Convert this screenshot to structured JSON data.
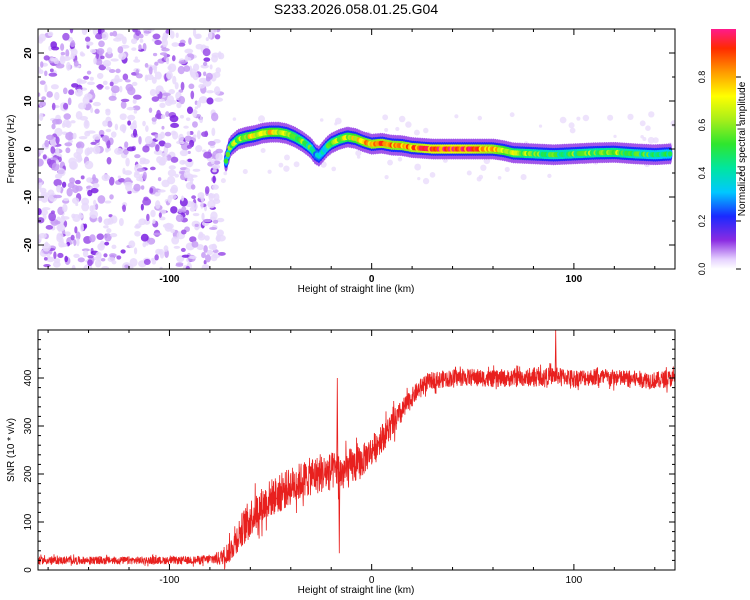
{
  "title": "S233.2026.058.01.25.G04",
  "chart_data": [
    {
      "type": "heatmap",
      "description_of_values": "spectrogram: frequency trace vs height",
      "xlabel": "Height of straight line (km)",
      "ylabel": "Frequency (Hz)",
      "xlim": [
        -165,
        150
      ],
      "ylim": [
        -25,
        25
      ],
      "xticks": [
        -100,
        0,
        100
      ],
      "xtick_labels": [
        "-100",
        "0",
        "100"
      ],
      "yticks": [
        -20,
        -10,
        0,
        10,
        20
      ],
      "ytick_labels": [
        "-20",
        "-10",
        "0",
        "10",
        "20"
      ],
      "noise_region_x": [
        -165,
        -74
      ],
      "trace": {
        "x": [
          -72,
          -70,
          -66,
          -62,
          -58,
          -54,
          -50,
          -46,
          -42,
          -38,
          -34,
          -30,
          -28,
          -26,
          -24,
          -22,
          -20,
          -16,
          -12,
          -8,
          -4,
          0,
          5,
          10,
          15,
          20,
          30,
          40,
          50,
          60,
          65,
          70,
          80,
          90,
          100,
          110,
          120,
          130,
          140,
          148
        ],
        "y": [
          -2.5,
          0.5,
          2.0,
          2.5,
          2.8,
          3.3,
          3.5,
          3.5,
          3.2,
          2.5,
          1.5,
          0.2,
          -1.0,
          -1.5,
          -0.5,
          0.5,
          1.2,
          2.0,
          2.5,
          2.2,
          1.5,
          1.0,
          1.2,
          0.8,
          0.7,
          0.3,
          0.0,
          0.0,
          0.0,
          0.0,
          -0.3,
          -0.8,
          -1.0,
          -1.2,
          -1.0,
          -0.8,
          -0.7,
          -1.0,
          -1.2,
          -1.0
        ],
        "amplitude": [
          0.4,
          0.55,
          0.6,
          0.65,
          0.7,
          0.72,
          0.7,
          0.68,
          0.65,
          0.6,
          0.55,
          0.45,
          0.35,
          0.35,
          0.4,
          0.5,
          0.55,
          0.6,
          0.65,
          0.7,
          0.75,
          0.8,
          0.82,
          0.8,
          0.78,
          0.82,
          0.9,
          0.92,
          0.88,
          0.8,
          0.7,
          0.62,
          0.55,
          0.5,
          0.52,
          0.55,
          0.58,
          0.5,
          0.45,
          0.42
        ]
      },
      "colorbar": {
        "label": "Normalized spectral amplitude",
        "range": [
          0.0,
          1.0
        ],
        "ticks": [
          0.0,
          0.2,
          0.4,
          0.6,
          0.8
        ],
        "tick_labels": [
          "0.0",
          "0.2",
          "0.4",
          "0.6",
          "0.8"
        ]
      }
    },
    {
      "type": "line",
      "xlabel": "Height of straight line (km)",
      "ylabel": "SNR (10 * v/v)",
      "xlim": [
        -165,
        150
      ],
      "ylim": [
        0,
        500
      ],
      "xticks": [
        -100,
        0,
        100
      ],
      "xtick_labels": [
        "-100",
        "0",
        "100"
      ],
      "yticks": [
        0,
        100,
        200,
        300,
        400
      ],
      "ytick_labels": [
        "0",
        "100",
        "200",
        "300",
        "400"
      ],
      "series": [
        {
          "name": "SNR",
          "color": "#e8201e",
          "x": [
            -165,
            -150,
            -130,
            -110,
            -90,
            -80,
            -75,
            -70,
            -65,
            -60,
            -55,
            -50,
            -45,
            -40,
            -35,
            -30,
            -25,
            -20,
            -17,
            -15,
            -10,
            -5,
            0,
            5,
            10,
            15,
            20,
            25,
            30,
            40,
            50,
            60,
            70,
            80,
            90,
            100,
            110,
            120,
            130,
            140,
            150
          ],
          "y": [
            20,
            20,
            20,
            20,
            20,
            22,
            25,
            40,
            80,
            110,
            130,
            150,
            160,
            175,
            185,
            195,
            200,
            205,
            210,
            200,
            215,
            225,
            250,
            275,
            300,
            330,
            360,
            385,
            395,
            400,
            402,
            398,
            400,
            400,
            405,
            400,
            402,
            400,
            398,
            395,
            400
          ],
          "noise_amplitude": [
            8,
            8,
            8,
            8,
            8,
            10,
            15,
            25,
            35,
            40,
            40,
            40,
            40,
            40,
            40,
            40,
            40,
            40,
            40,
            40,
            40,
            35,
            30,
            30,
            30,
            25,
            20,
            18,
            18,
            18,
            18,
            18,
            18,
            18,
            18,
            18,
            18,
            18,
            18,
            18,
            18
          ],
          "spikes": [
            {
              "x": -17,
              "y": 400
            },
            {
              "x": -16,
              "y": 35
            },
            {
              "x": 91,
              "y": 500
            }
          ]
        }
      ]
    }
  ]
}
